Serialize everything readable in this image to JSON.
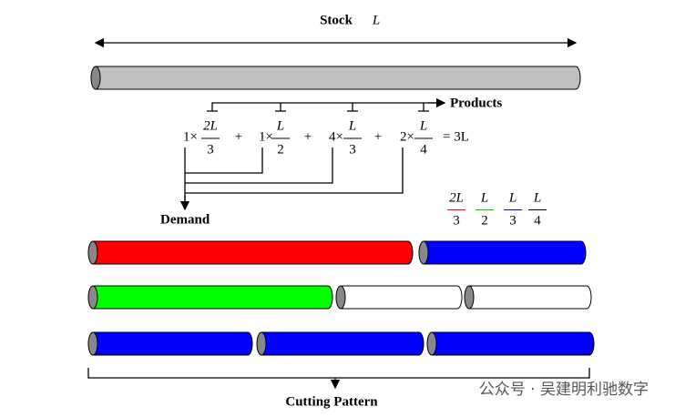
{
  "stock": {
    "label": "Stock",
    "symbol": "L"
  },
  "products_label": "Products",
  "formula": {
    "terms": [
      {
        "count": "1×",
        "num": "2L",
        "den": "3"
      },
      {
        "count": "1×",
        "num": "L",
        "den": "2"
      },
      {
        "count": "4×",
        "num": "L",
        "den": "3"
      },
      {
        "count": "2×",
        "num": "L",
        "den": "4"
      }
    ],
    "operators": [
      "+",
      "+",
      "+"
    ],
    "result": "= 3L"
  },
  "demand_label": "Demand",
  "legend": [
    {
      "num": "2L",
      "den": "3",
      "color": "#ff0000"
    },
    {
      "num": "L",
      "den": "2",
      "color": "#00cc00"
    },
    {
      "num": "L",
      "den": "3",
      "color": "#0000ff"
    },
    {
      "num": "L",
      "den": "4",
      "color": "#000000"
    }
  ],
  "caption": "Cutting Pattern",
  "watermark": "公众号 · 吴建明利驰数字"
}
